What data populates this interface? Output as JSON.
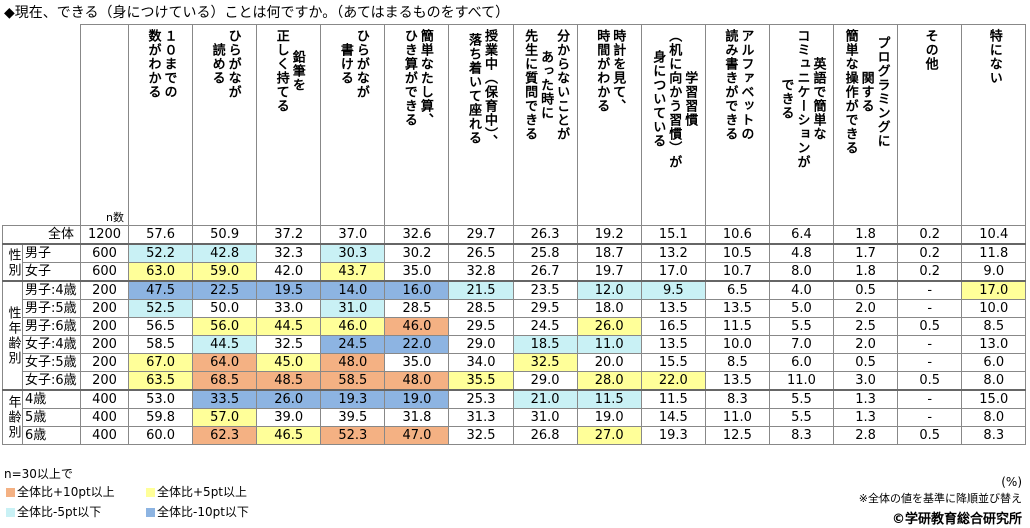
{
  "title": "◆現在、できる（身につけている）ことは何ですか。（あてはまるものをすべて）",
  "table": {
    "n_header": "n数",
    "columns": [
      [
        "１０までの",
        "数がわかる"
      ],
      [
        "ひらがなが",
        "読める"
      ],
      [
        "鉛筆を",
        "正しく持てる"
      ],
      [
        "ひらがなが",
        "書ける"
      ],
      [
        "簡単なたし算、",
        "ひき算ができる"
      ],
      [
        "授業中（保育中）、",
        "落ち着いて座れる"
      ],
      [
        "分からないことが",
        "あった時に",
        "先生に質問できる"
      ],
      [
        "時計を見て、",
        "時間がわかる"
      ],
      [
        "学習習慣",
        "（机に向かう習慣）が",
        "身についている"
      ],
      [
        "アルファベットの",
        "読み書きができる"
      ],
      [
        "英語で簡単な",
        "コミュニケーションが",
        "できる"
      ],
      [
        "プログラミングに",
        "関する",
        "簡単な操作ができる"
      ],
      [
        "その他"
      ],
      [
        "特にない"
      ]
    ],
    "total": {
      "label": "全体",
      "n": "1200",
      "values": [
        "57.6",
        "50.9",
        "37.2",
        "37.0",
        "32.6",
        "29.7",
        "26.3",
        "19.2",
        "15.1",
        "10.6",
        "6.4",
        "1.8",
        "0.2",
        "10.4"
      ]
    },
    "groups": [
      {
        "label": "性別",
        "rows": [
          {
            "label": "男子",
            "n": "600",
            "values": [
              "52.2",
              "42.8",
              "32.3",
              "30.3",
              "30.2",
              "26.5",
              "25.8",
              "18.7",
              "13.2",
              "10.5",
              "4.8",
              "1.7",
              "0.2",
              "11.8"
            ],
            "shade": [
              2,
              2,
              null,
              2,
              null,
              null,
              null,
              null,
              null,
              null,
              null,
              null,
              null,
              null
            ]
          },
          {
            "label": "女子",
            "n": "600",
            "values": [
              "63.0",
              "59.0",
              "42.0",
              "43.7",
              "35.0",
              "32.8",
              "26.7",
              "19.7",
              "17.0",
              "10.7",
              "8.0",
              "1.8",
              "0.2",
              "9.0"
            ],
            "shade": [
              1,
              1,
              null,
              1,
              null,
              null,
              null,
              null,
              null,
              null,
              null,
              null,
              null,
              null
            ]
          }
        ]
      },
      {
        "label": "性年齢別",
        "rows": [
          {
            "label": "男子:4歳",
            "n": "200",
            "values": [
              "47.5",
              "22.5",
              "19.5",
              "14.0",
              "16.0",
              "21.5",
              "23.5",
              "12.0",
              "9.5",
              "6.5",
              "4.0",
              "0.5",
              "-",
              "17.0"
            ],
            "shade": [
              3,
              3,
              3,
              3,
              3,
              2,
              null,
              2,
              2,
              null,
              null,
              null,
              null,
              1
            ]
          },
          {
            "label": "男子:5歳",
            "n": "200",
            "values": [
              "52.5",
              "50.0",
              "33.0",
              "31.0",
              "28.5",
              "28.5",
              "29.5",
              "18.0",
              "13.5",
              "13.5",
              "5.0",
              "2.0",
              "-",
              "10.0"
            ],
            "shade": [
              2,
              null,
              null,
              2,
              null,
              null,
              null,
              null,
              null,
              null,
              null,
              null,
              null,
              null
            ]
          },
          {
            "label": "男子:6歳",
            "n": "200",
            "values": [
              "56.5",
              "56.0",
              "44.5",
              "46.0",
              "46.0",
              "29.5",
              "24.5",
              "26.0",
              "16.5",
              "11.5",
              "5.5",
              "2.5",
              "0.5",
              "8.5"
            ],
            "shade": [
              null,
              1,
              1,
              1,
              0,
              null,
              null,
              1,
              null,
              null,
              null,
              null,
              null,
              null
            ]
          },
          {
            "label": "女子:4歳",
            "n": "200",
            "values": [
              "58.5",
              "44.5",
              "32.5",
              "24.5",
              "22.0",
              "29.0",
              "18.5",
              "11.0",
              "13.5",
              "10.0",
              "7.0",
              "2.0",
              "-",
              "13.0"
            ],
            "shade": [
              null,
              2,
              null,
              3,
              3,
              null,
              2,
              2,
              null,
              null,
              null,
              null,
              null,
              null
            ]
          },
          {
            "label": "女子:5歳",
            "n": "200",
            "values": [
              "67.0",
              "64.0",
              "45.0",
              "48.0",
              "35.0",
              "34.0",
              "32.5",
              "20.0",
              "15.5",
              "8.5",
              "6.0",
              "0.5",
              "-",
              "6.0"
            ],
            "shade": [
              1,
              0,
              1,
              0,
              null,
              null,
              1,
              null,
              null,
              null,
              null,
              null,
              null,
              null
            ]
          },
          {
            "label": "女子:6歳",
            "n": "200",
            "values": [
              "63.5",
              "68.5",
              "48.5",
              "58.5",
              "48.0",
              "35.5",
              "29.0",
              "28.0",
              "22.0",
              "13.5",
              "11.0",
              "3.0",
              "0.5",
              "8.0"
            ],
            "shade": [
              1,
              0,
              0,
              0,
              0,
              1,
              null,
              1,
              1,
              null,
              null,
              null,
              null,
              null
            ]
          }
        ]
      },
      {
        "label": "年齢別",
        "rows": [
          {
            "label": "4歳",
            "n": "400",
            "values": [
              "53.0",
              "33.5",
              "26.0",
              "19.3",
              "19.0",
              "25.3",
              "21.0",
              "11.5",
              "11.5",
              "8.3",
              "5.5",
              "1.3",
              "-",
              "15.0"
            ],
            "shade": [
              null,
              3,
              3,
              3,
              3,
              null,
              2,
              2,
              null,
              null,
              null,
              null,
              null,
              null
            ]
          },
          {
            "label": "5歳",
            "n": "400",
            "values": [
              "59.8",
              "57.0",
              "39.0",
              "39.5",
              "31.8",
              "31.3",
              "31.0",
              "19.0",
              "14.5",
              "11.0",
              "5.5",
              "1.3",
              "-",
              "8.0"
            ],
            "shade": [
              null,
              1,
              null,
              null,
              null,
              null,
              null,
              null,
              null,
              null,
              null,
              null,
              null,
              null
            ]
          },
          {
            "label": "6歳",
            "n": "400",
            "values": [
              "60.0",
              "62.3",
              "46.5",
              "52.3",
              "47.0",
              "32.5",
              "26.8",
              "27.0",
              "19.3",
              "12.5",
              "8.3",
              "2.8",
              "0.5",
              "8.3"
            ],
            "shade": [
              null,
              0,
              1,
              0,
              0,
              null,
              null,
              1,
              null,
              null,
              null,
              null,
              null,
              null
            ]
          }
        ]
      }
    ]
  },
  "legend": {
    "note": "n=30以上で",
    "items": [
      {
        "label": "全体比+10pt以上",
        "color": "#f4b183"
      },
      {
        "label": "全体比+5pt以上",
        "color": "#ffff99"
      },
      {
        "label": "全体比-5pt以下",
        "color": "#c9f1f5"
      },
      {
        "label": "全体比-10pt以下",
        "color": "#8db4e2"
      }
    ]
  },
  "unit": "(%)",
  "note": "※全体の値を基準に降順並び替え",
  "copyright": "©学研教育総合研究所"
}
